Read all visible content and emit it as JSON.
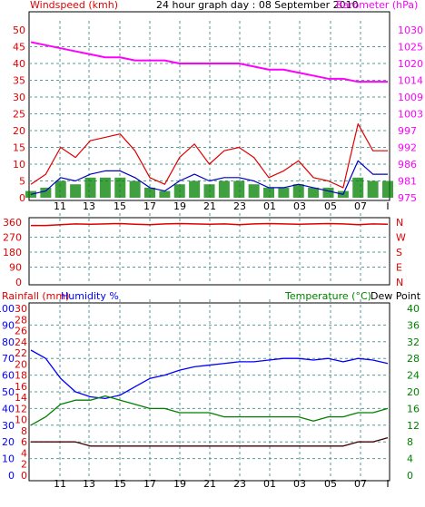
{
  "colors": {
    "wind": "#e00000",
    "gust_bars": "#008000",
    "baro": "#ff00ff",
    "avg_wind": "#0000c0",
    "humidity": "#0000ff",
    "temperature": "#008000",
    "dew_point": "#400000",
    "grid": "#008080",
    "frame": "#000000"
  },
  "header": {
    "left": "Windspeed (kmh)",
    "center": "24 hour graph day : 08 September 2010",
    "right": "Barometer (hPa)"
  },
  "lower_header": {
    "rainfall": "Rainfall (mm)",
    "humidity": "Humidity %",
    "temperature": "Temperature (°C)",
    "dew_point": "Dew Point"
  },
  "chart_data": [
    {
      "type": "line",
      "panel": "wind-barometer",
      "x_ticks": [
        "11",
        "13",
        "15",
        "17",
        "19",
        "21",
        "23",
        "01",
        "03",
        "05",
        "07",
        "I"
      ],
      "y_left_ticks": [
        "50",
        "45",
        "40",
        "35",
        "30",
        "25",
        "20",
        "15",
        "10",
        "5",
        "0"
      ],
      "y_left_range": [
        0,
        50
      ],
      "y_right_ticks": [
        "1030",
        "1025",
        "1020",
        "1014",
        "1009",
        "1003",
        "997",
        "992",
        "986",
        "981",
        "975"
      ],
      "y_right_range": [
        975,
        1030
      ],
      "barometer_hpa": [
        1026,
        1025,
        1024,
        1023,
        1022,
        1021,
        1021,
        1020,
        1020,
        1020,
        1019,
        1019,
        1019,
        1019,
        1019,
        1018,
        1017,
        1017,
        1016,
        1015,
        1014,
        1014,
        1013,
        1013,
        1013
      ],
      "windspeed_kmh": [
        4,
        7,
        15,
        12,
        17,
        18,
        19,
        14,
        6,
        4,
        12,
        16,
        10,
        14,
        15,
        12,
        6,
        8,
        11,
        6,
        5,
        3,
        22,
        14,
        14
      ],
      "avg_wind_kmh": [
        1,
        2,
        6,
        5,
        7,
        8,
        8,
        6,
        3,
        2,
        5,
        7,
        5,
        6,
        6,
        5,
        3,
        3,
        4,
        3,
        2,
        1,
        11,
        7,
        7
      ],
      "gust_bars_kmh": [
        2,
        3,
        5,
        4,
        6,
        6,
        6,
        5,
        3,
        2,
        4,
        5,
        4,
        5,
        5,
        4,
        3,
        3,
        4,
        3,
        3,
        2,
        6,
        5,
        5
      ],
      "grid": true
    },
    {
      "type": "line",
      "panel": "wind-direction",
      "y_left_ticks": [
        "360",
        "270",
        "180",
        "90",
        "0"
      ],
      "y_left_range": [
        0,
        360
      ],
      "y_right_ticks": [
        "N",
        "W",
        "S",
        "E",
        "N"
      ],
      "direction_deg": [
        340,
        340,
        345,
        350,
        348,
        350,
        352,
        348,
        345,
        350,
        352,
        350,
        348,
        350,
        345,
        350,
        352,
        350,
        348,
        350,
        352,
        350,
        345,
        350,
        348
      ],
      "grid": true
    },
    {
      "type": "line",
      "panel": "humidity-temperature",
      "y_rain_ticks": [
        "30",
        "28",
        "26",
        "24",
        "22",
        "20",
        "18",
        "16",
        "14",
        "12",
        "10",
        "8",
        "6",
        "4",
        "2",
        "0"
      ],
      "y_humidity_ticks": [
        "100",
        "90",
        "80",
        "70",
        "60",
        "50",
        "40",
        "30",
        "20",
        "10",
        "0"
      ],
      "y_humidity_range": [
        0,
        100
      ],
      "y_temp_ticks": [
        "40",
        "36",
        "32",
        "28",
        "24",
        "20",
        "16",
        "12",
        "8",
        "4",
        "0"
      ],
      "y_temp_range": [
        0,
        40
      ],
      "humidity_pct": [
        75,
        70,
        58,
        50,
        47,
        46,
        48,
        53,
        58,
        60,
        63,
        65,
        66,
        67,
        68,
        68,
        69,
        70,
        70,
        69,
        70,
        68,
        70,
        69,
        67
      ],
      "temperature_c": [
        12,
        14,
        17,
        18,
        18,
        19,
        18,
        17,
        16,
        16,
        15,
        15,
        15,
        14,
        14,
        14,
        14,
        14,
        14,
        13,
        14,
        14,
        15,
        15,
        16
      ],
      "dew_point_c": [
        8,
        8,
        8,
        8,
        7,
        7,
        7,
        7,
        7,
        7,
        7,
        7,
        7,
        7,
        7,
        7,
        7,
        7,
        7,
        7,
        7,
        7,
        8,
        8,
        9
      ],
      "grid": true
    }
  ]
}
